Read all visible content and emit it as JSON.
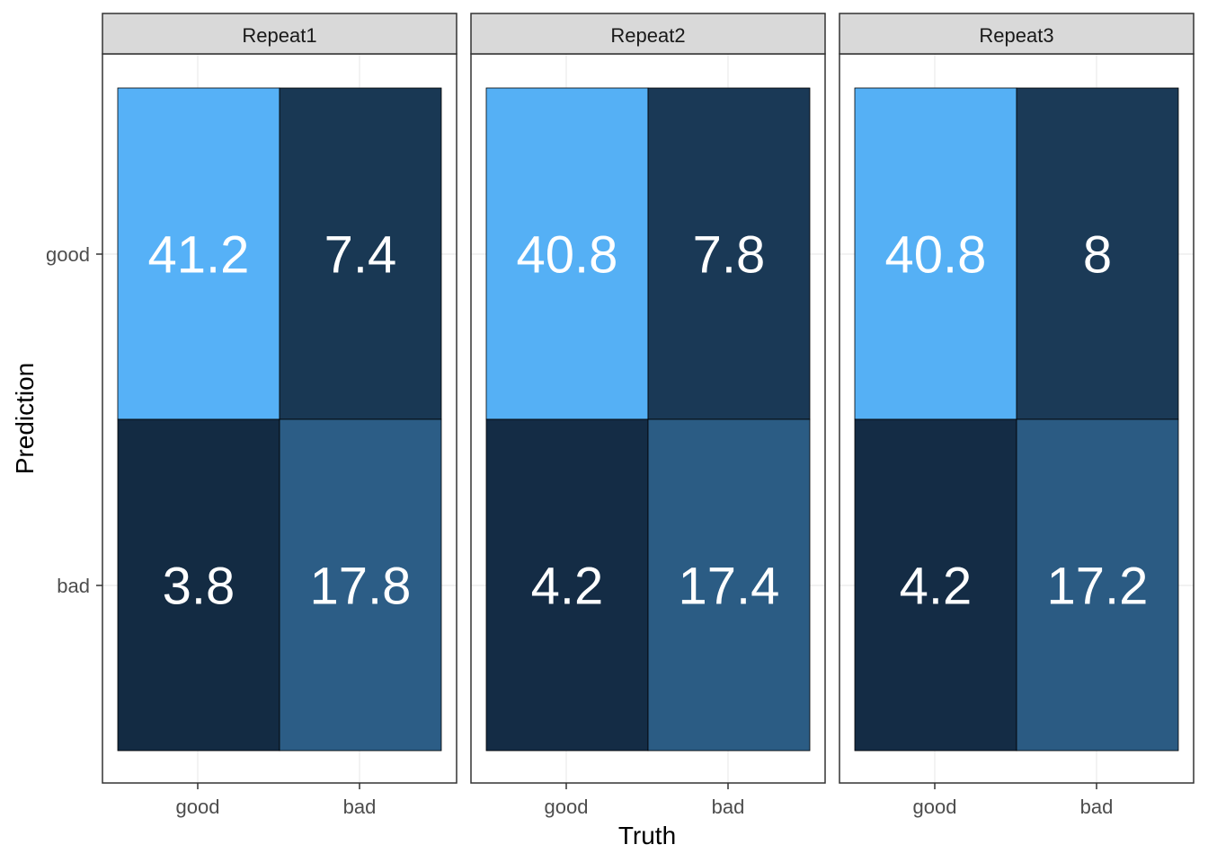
{
  "chart_data": {
    "type": "heatmap",
    "xlabel": "Truth",
    "ylabel": "Prediction",
    "x_categories": [
      "good",
      "bad"
    ],
    "y_categories": [
      "good",
      "bad"
    ],
    "grid": true,
    "legend": "none",
    "facets": [
      {
        "label": "Repeat1",
        "cells": [
          {
            "truth": "good",
            "prediction": "good",
            "value": 41.2
          },
          {
            "truth": "bad",
            "prediction": "good",
            "value": 7.4
          },
          {
            "truth": "good",
            "prediction": "bad",
            "value": 3.8
          },
          {
            "truth": "bad",
            "prediction": "bad",
            "value": 17.8
          }
        ]
      },
      {
        "label": "Repeat2",
        "cells": [
          {
            "truth": "good",
            "prediction": "good",
            "value": 40.8
          },
          {
            "truth": "bad",
            "prediction": "good",
            "value": 7.8
          },
          {
            "truth": "good",
            "prediction": "bad",
            "value": 4.2
          },
          {
            "truth": "bad",
            "prediction": "bad",
            "value": 17.4
          }
        ]
      },
      {
        "label": "Repeat3",
        "cells": [
          {
            "truth": "good",
            "prediction": "good",
            "value": 40.8
          },
          {
            "truth": "bad",
            "prediction": "good",
            "value": 8
          },
          {
            "truth": "good",
            "prediction": "bad",
            "value": 4.2
          },
          {
            "truth": "bad",
            "prediction": "bad",
            "value": 17.2
          }
        ]
      }
    ],
    "color_scale": {
      "low": "#132B43",
      "high": "#56B1F7"
    }
  }
}
